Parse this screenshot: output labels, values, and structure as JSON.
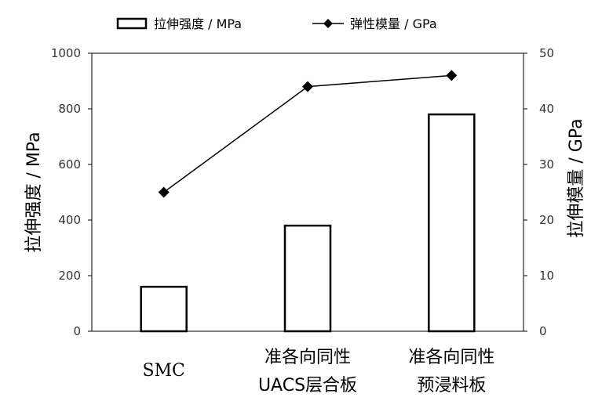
{
  "chart_data": {
    "type": "bar+line",
    "categories": [
      [
        "SMC"
      ],
      [
        "准各向同性",
        "UACS层合板"
      ],
      [
        "准各向同性",
        "预浸料板"
      ]
    ],
    "series": [
      {
        "name": "拉伸强度 / MPa",
        "type": "bar",
        "axis": "left",
        "values": [
          160,
          380,
          780
        ]
      },
      {
        "name": "弹性模量 / GPa",
        "type": "line",
        "axis": "right",
        "marker": "diamond",
        "values": [
          25,
          44,
          46
        ]
      }
    ],
    "ylabel": "拉伸强度 / MPa",
    "y2label": "拉伸模量 / GPa",
    "ylim": [
      0,
      1000
    ],
    "y2lim": [
      0,
      50
    ],
    "yticks": [
      "0",
      "200",
      "400",
      "600",
      "800",
      "1000"
    ],
    "y2ticks": [
      "0",
      "10",
      "20",
      "30",
      "40",
      "50"
    ],
    "legend_position": "top",
    "colors": {
      "bar_fill": "#ffffff",
      "bar_stroke": "#000000",
      "line": "#000000",
      "axis": "#000000"
    }
  }
}
